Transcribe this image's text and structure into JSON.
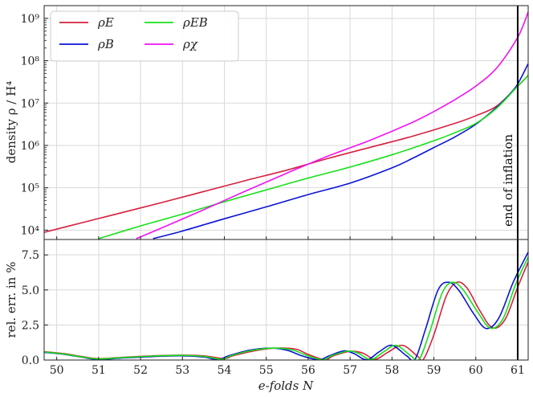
{
  "chart_data": [
    {
      "type": "line",
      "panel": "top",
      "ylabel": "density ρ / H⁴",
      "yscale": "log",
      "xlim": [
        49.7,
        61.25
      ],
      "ylim_log10": [
        3.78,
        9.3
      ],
      "y_ticks": [
        {
          "label": "10⁴",
          "exp": 4
        },
        {
          "label": "10⁵",
          "exp": 5
        },
        {
          "label": "10⁶",
          "exp": 6
        },
        {
          "label": "10⁷",
          "exp": 7
        },
        {
          "label": "10⁸",
          "exp": 8
        },
        {
          "label": "10⁹",
          "exp": 9
        }
      ],
      "grid": true,
      "legend_position": "top-left",
      "annotation": "end of inflation",
      "end_of_inflation_x": 61.0,
      "series": [
        {
          "name": "ρE",
          "color": "#d6213f",
          "x": [
            49.7,
            50.5,
            51.5,
            52.5,
            53.5,
            54.5,
            55.5,
            56.5,
            57.5,
            58.5,
            59.5,
            60.0,
            60.5,
            61.0,
            61.25
          ],
          "log10y": [
            3.95,
            4.15,
            4.4,
            4.65,
            4.91,
            5.17,
            5.42,
            5.7,
            5.96,
            6.22,
            6.52,
            6.7,
            6.93,
            7.4,
            7.65
          ]
        },
        {
          "name": "ρB",
          "color": "#0a15d4",
          "x": [
            52.3,
            53.0,
            54.0,
            55.0,
            56.0,
            57.0,
            58.0,
            58.5,
            59.0,
            59.5,
            60.0,
            60.5,
            60.8,
            61.0,
            61.25
          ],
          "log10y": [
            3.8,
            3.98,
            4.27,
            4.55,
            4.84,
            5.11,
            5.47,
            5.7,
            5.95,
            6.2,
            6.5,
            6.9,
            7.2,
            7.45,
            7.93
          ]
        },
        {
          "name": "ρEB",
          "color": "#18e01a",
          "x": [
            51.0,
            52.0,
            53.0,
            54.0,
            55.0,
            56.0,
            57.0,
            58.0,
            59.0,
            59.5,
            60.0,
            60.5,
            61.0,
            61.25
          ],
          "log10y": [
            3.8,
            4.1,
            4.38,
            4.67,
            4.95,
            5.23,
            5.49,
            5.78,
            6.11,
            6.3,
            6.52,
            6.88,
            7.4,
            7.65
          ]
        },
        {
          "name": "ρχ",
          "color": "#f012f0",
          "x": [
            51.9,
            52.5,
            53.5,
            54.5,
            55.5,
            56.5,
            57.5,
            58.5,
            59.0,
            59.5,
            60.0,
            60.5,
            61.0,
            61.25
          ],
          "log10y": [
            3.8,
            4.05,
            4.48,
            4.92,
            5.35,
            5.76,
            6.13,
            6.55,
            6.8,
            7.08,
            7.4,
            7.83,
            8.55,
            9.15
          ]
        }
      ]
    },
    {
      "type": "line",
      "panel": "bottom",
      "xlabel": "e-folds N",
      "ylabel": "rel. err. in %",
      "xlim": [
        49.7,
        61.25
      ],
      "ylim": [
        0,
        8.6
      ],
      "x_ticks": [
        50,
        51,
        52,
        53,
        54,
        55,
        56,
        57,
        58,
        59,
        60,
        61
      ],
      "y_ticks": [
        "0.0",
        "2.5",
        "5.0",
        "7.5"
      ],
      "grid": true,
      "series": [
        {
          "name": "ρE",
          "color": "#d6213f",
          "x": [
            49.7,
            50.2,
            50.6,
            51.0,
            51.6,
            52.3,
            53.0,
            53.5,
            54.0,
            54.2,
            54.7,
            55.2,
            55.7,
            56.0,
            56.4,
            56.6,
            57.0,
            57.3,
            57.6,
            57.9,
            58.25,
            58.6,
            58.75,
            59.0,
            59.3,
            59.55,
            59.8,
            60.1,
            60.4,
            60.7,
            61.0,
            61.25
          ],
          "y": [
            0.6,
            0.45,
            0.25,
            0.1,
            0.2,
            0.3,
            0.35,
            0.3,
            0.1,
            0.3,
            0.65,
            0.85,
            0.78,
            0.4,
            0.02,
            0.3,
            0.62,
            0.5,
            0.05,
            0.55,
            1.05,
            0.3,
            0.05,
            1.8,
            4.6,
            5.55,
            5.1,
            3.5,
            2.3,
            2.9,
            5.2,
            7.0
          ]
        },
        {
          "name": "ρB",
          "color": "#0a15d4",
          "x": [
            49.7,
            50.2,
            50.6,
            51.0,
            51.6,
            52.3,
            53.0,
            53.5,
            53.85,
            54.1,
            54.6,
            55.1,
            55.5,
            55.85,
            56.25,
            56.5,
            56.85,
            57.1,
            57.4,
            57.7,
            58.0,
            58.35,
            58.55,
            58.8,
            59.1,
            59.35,
            59.6,
            59.95,
            60.25,
            60.55,
            60.9,
            61.25
          ],
          "y": [
            0.55,
            0.4,
            0.2,
            0.05,
            0.15,
            0.25,
            0.3,
            0.22,
            0.02,
            0.3,
            0.7,
            0.85,
            0.7,
            0.3,
            0.02,
            0.3,
            0.65,
            0.45,
            0.02,
            0.6,
            1.05,
            0.3,
            0.05,
            2.2,
            5.0,
            5.55,
            4.95,
            3.3,
            2.25,
            3.0,
            5.6,
            7.7
          ]
        },
        {
          "name": "ρEB",
          "color": "#18e01a",
          "x": [
            49.7,
            50.2,
            50.6,
            51.0,
            51.6,
            52.3,
            53.0,
            53.5,
            53.95,
            54.15,
            54.65,
            55.15,
            55.6,
            55.95,
            56.35,
            56.55,
            56.95,
            57.2,
            57.5,
            57.8,
            58.1,
            58.45,
            58.65,
            58.9,
            59.2,
            59.45,
            59.7,
            60.05,
            60.35,
            60.65,
            60.95,
            61.25
          ],
          "y": [
            0.58,
            0.42,
            0.22,
            0.08,
            0.18,
            0.28,
            0.33,
            0.26,
            0.05,
            0.3,
            0.68,
            0.85,
            0.74,
            0.35,
            0.02,
            0.3,
            0.63,
            0.48,
            0.03,
            0.58,
            1.05,
            0.3,
            0.05,
            2.0,
            4.8,
            5.55,
            5.0,
            3.4,
            2.27,
            2.95,
            5.4,
            7.35
          ]
        }
      ]
    }
  ]
}
